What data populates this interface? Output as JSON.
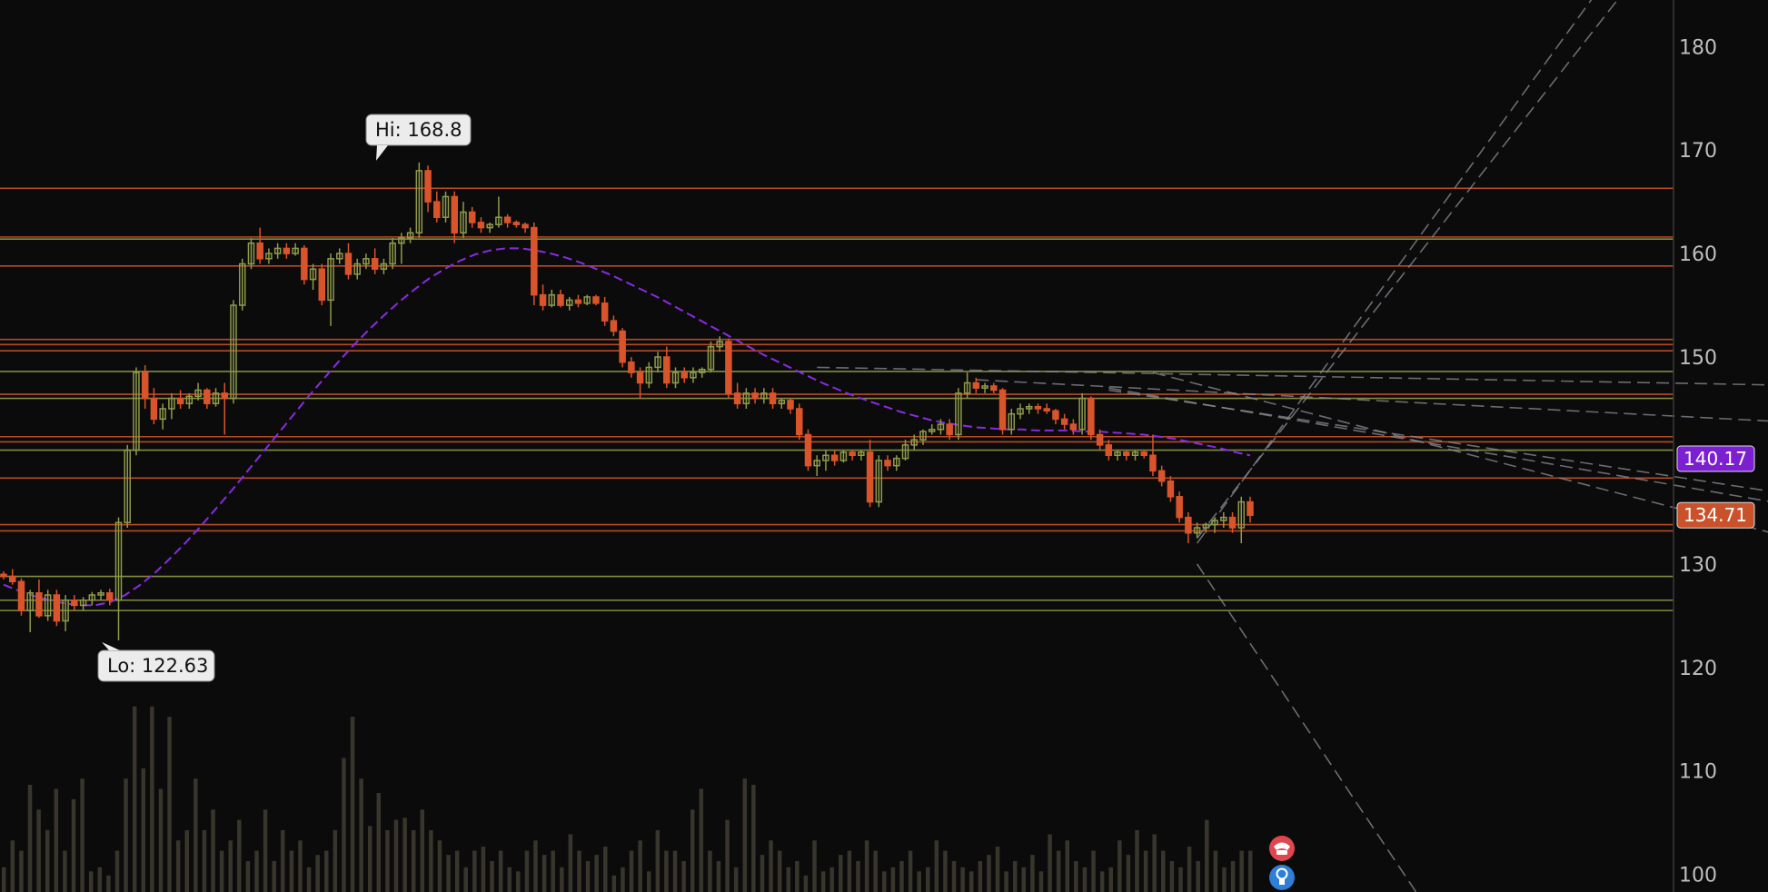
{
  "chart_data": {
    "type": "candlestick",
    "y_axis": {
      "ylim": [
        98.3,
        184.5
      ],
      "ticks": [
        100,
        110,
        120,
        130,
        140,
        150,
        160,
        170,
        180
      ],
      "position": "right"
    },
    "colors": {
      "background": "#0b0b0b",
      "up": "#8f9a4a",
      "down": "#d9542b",
      "ma": "#8a2be2",
      "volume": "#38352c",
      "trend": "#8b8b96",
      "axis_divider": "#444444"
    },
    "annotations": {
      "high": {
        "label": "Hi: 168.8",
        "value": 168.8
      },
      "low": {
        "label": "Lo: 122.63",
        "value": 122.63
      }
    },
    "price_badges": [
      {
        "label": "140.17",
        "value": 140.17,
        "color": "#7b1fd1"
      },
      {
        "label": "134.71",
        "value": 134.71,
        "color": "#c9522a"
      }
    ],
    "horizontal_levels": [
      {
        "value": 166.3,
        "color": "#c9522a"
      },
      {
        "value": 161.6,
        "color": "#c9522a"
      },
      {
        "value": 161.4,
        "color": "#8f9a4a"
      },
      {
        "value": 158.8,
        "color": "#c9522a"
      },
      {
        "value": 151.7,
        "color": "#c9522a"
      },
      {
        "value": 151.2,
        "color": "#c9522a"
      },
      {
        "value": 150.6,
        "color": "#c9522a"
      },
      {
        "value": 148.6,
        "color": "#8f9a4a"
      },
      {
        "value": 146.4,
        "color": "#c9522a"
      },
      {
        "value": 146.0,
        "color": "#8f9a4a"
      },
      {
        "value": 142.3,
        "color": "#c9522a"
      },
      {
        "value": 141.8,
        "color": "#c9522a"
      },
      {
        "value": 141.0,
        "color": "#8f9a4a"
      },
      {
        "value": 138.3,
        "color": "#c9522a"
      },
      {
        "value": 133.8,
        "color": "#c9522a"
      },
      {
        "value": 133.2,
        "color": "#c9522a"
      },
      {
        "value": 128.8,
        "color": "#8f9a4a"
      },
      {
        "value": 126.5,
        "color": "#8f9a4a"
      },
      {
        "value": 125.5,
        "color": "#8f9a4a"
      }
    ],
    "candles": [
      [
        129.0,
        129.3,
        128.5,
        128.8
      ],
      [
        128.8,
        129.5,
        128.0,
        128.3
      ],
      [
        128.3,
        128.6,
        125.0,
        125.5
      ],
      [
        125.5,
        127.5,
        123.4,
        127.2
      ],
      [
        127.2,
        128.5,
        124.8,
        125.0
      ],
      [
        125.0,
        127.5,
        124.5,
        127.0
      ],
      [
        127.0,
        127.5,
        124.0,
        124.5
      ],
      [
        124.5,
        127.0,
        123.5,
        126.5
      ],
      [
        126.5,
        127.0,
        125.5,
        126.0
      ],
      [
        126.0,
        126.8,
        125.5,
        126.5
      ],
      [
        126.5,
        127.3,
        126.0,
        127.0
      ],
      [
        127.0,
        127.5,
        126.5,
        127.2
      ],
      [
        127.2,
        127.6,
        126.0,
        126.5
      ],
      [
        126.5,
        134.5,
        122.63,
        134.0
      ],
      [
        134.0,
        141.5,
        133.5,
        141.0
      ],
      [
        141.0,
        149.0,
        140.5,
        148.5
      ],
      [
        148.5,
        149.2,
        145.0,
        146.0
      ],
      [
        146.0,
        147.0,
        143.5,
        144.0
      ],
      [
        144.0,
        145.5,
        143.0,
        145.0
      ],
      [
        145.0,
        146.5,
        144.0,
        146.0
      ],
      [
        146.0,
        146.8,
        145.0,
        145.5
      ],
      [
        145.5,
        146.5,
        145.0,
        146.2
      ],
      [
        146.2,
        147.5,
        145.8,
        146.8
      ],
      [
        146.8,
        147.0,
        145.0,
        145.5
      ],
      [
        145.5,
        147.0,
        145.2,
        146.5
      ],
      [
        146.5,
        147.5,
        142.5,
        146.0
      ],
      [
        146.0,
        155.5,
        145.5,
        155.0
      ],
      [
        155.0,
        159.5,
        154.5,
        159.0
      ],
      [
        159.0,
        161.5,
        158.5,
        161.0
      ],
      [
        161.0,
        162.5,
        159.0,
        159.5
      ],
      [
        159.5,
        160.5,
        159.0,
        160.0
      ],
      [
        160.0,
        161.0,
        159.5,
        160.5
      ],
      [
        160.5,
        161.0,
        159.5,
        160.0
      ],
      [
        160.0,
        161.0,
        159.8,
        160.5
      ],
      [
        160.5,
        160.8,
        157.0,
        157.5
      ],
      [
        157.5,
        159.0,
        156.5,
        158.5
      ],
      [
        158.5,
        159.0,
        155.0,
        155.5
      ],
      [
        155.5,
        160.0,
        153.0,
        159.5
      ],
      [
        159.5,
        160.5,
        159.0,
        160.0
      ],
      [
        160.0,
        161.0,
        157.5,
        158.0
      ],
      [
        158.0,
        159.5,
        157.5,
        159.0
      ],
      [
        159.0,
        160.0,
        158.5,
        159.5
      ],
      [
        159.5,
        160.5,
        158.0,
        158.5
      ],
      [
        158.5,
        159.5,
        158.0,
        159.0
      ],
      [
        159.0,
        161.5,
        158.5,
        161.0
      ],
      [
        161.0,
        162.0,
        159.0,
        161.5
      ],
      [
        161.5,
        162.5,
        161.0,
        162.0
      ],
      [
        162.0,
        168.8,
        161.5,
        168.0
      ],
      [
        168.0,
        168.5,
        164.0,
        165.0
      ],
      [
        165.0,
        166.0,
        163.0,
        163.5
      ],
      [
        163.5,
        166.0,
        163.0,
        165.5
      ],
      [
        165.5,
        166.0,
        161.0,
        162.0
      ],
      [
        162.0,
        165.0,
        161.5,
        164.0
      ],
      [
        164.0,
        164.5,
        162.5,
        163.0
      ],
      [
        163.0,
        163.5,
        162.0,
        162.5
      ],
      [
        162.5,
        163.0,
        162.0,
        162.8
      ],
      [
        162.8,
        165.5,
        162.5,
        163.5
      ],
      [
        163.5,
        163.8,
        162.5,
        163.0
      ],
      [
        163.0,
        163.2,
        162.5,
        162.8
      ],
      [
        162.8,
        163.0,
        162.0,
        162.5
      ],
      [
        162.5,
        163.0,
        155.0,
        156.0
      ],
      [
        156.0,
        157.0,
        154.5,
        155.0
      ],
      [
        155.0,
        156.5,
        154.8,
        156.0
      ],
      [
        156.0,
        156.5,
        154.8,
        155.0
      ],
      [
        155.0,
        155.8,
        154.5,
        155.5
      ],
      [
        155.5,
        156.0,
        154.8,
        155.2
      ],
      [
        155.2,
        156.0,
        155.0,
        155.8
      ],
      [
        155.8,
        156.0,
        155.0,
        155.2
      ],
      [
        155.2,
        155.8,
        153.0,
        153.5
      ],
      [
        153.5,
        154.0,
        152.0,
        152.5
      ],
      [
        152.5,
        152.8,
        149.0,
        149.5
      ],
      [
        149.5,
        150.0,
        148.0,
        148.5
      ],
      [
        148.5,
        149.0,
        146.0,
        147.5
      ],
      [
        147.5,
        149.5,
        147.0,
        149.0
      ],
      [
        149.0,
        150.5,
        148.5,
        150.0
      ],
      [
        150.0,
        151.0,
        147.0,
        147.5
      ],
      [
        147.5,
        149.0,
        147.0,
        148.5
      ],
      [
        148.5,
        149.0,
        147.5,
        148.0
      ],
      [
        148.0,
        149.0,
        147.5,
        148.5
      ],
      [
        148.5,
        149.0,
        148.0,
        148.8
      ],
      [
        148.8,
        151.5,
        148.5,
        151.0
      ],
      [
        151.0,
        152.0,
        150.5,
        151.5
      ],
      [
        151.5,
        151.8,
        146.0,
        146.5
      ],
      [
        146.5,
        147.5,
        145.0,
        145.5
      ],
      [
        145.5,
        147.0,
        145.0,
        146.5
      ],
      [
        146.5,
        147.0,
        145.5,
        146.0
      ],
      [
        146.0,
        147.0,
        145.5,
        146.5
      ],
      [
        146.5,
        147.0,
        145.0,
        145.5
      ],
      [
        145.5,
        146.0,
        145.0,
        145.8
      ],
      [
        145.8,
        146.0,
        144.5,
        145.0
      ],
      [
        145.0,
        145.5,
        142.0,
        142.5
      ],
      [
        142.5,
        143.0,
        139.0,
        139.5
      ],
      [
        139.5,
        140.5,
        138.5,
        140.0
      ],
      [
        140.0,
        141.0,
        139.0,
        140.5
      ],
      [
        140.5,
        141.0,
        139.5,
        140.0
      ],
      [
        140.0,
        141.0,
        139.8,
        140.8
      ],
      [
        140.8,
        141.0,
        140.0,
        140.5
      ],
      [
        140.5,
        141.0,
        140.0,
        140.8
      ],
      [
        140.8,
        142.0,
        135.5,
        136.0
      ],
      [
        136.0,
        140.5,
        135.5,
        140.0
      ],
      [
        140.0,
        140.5,
        139.0,
        139.5
      ],
      [
        139.5,
        140.5,
        139.0,
        140.2
      ],
      [
        140.2,
        142.0,
        140.0,
        141.5
      ],
      [
        141.5,
        142.5,
        141.0,
        142.0
      ],
      [
        142.0,
        143.0,
        141.5,
        142.8
      ],
      [
        142.8,
        143.5,
        142.5,
        143.0
      ],
      [
        143.0,
        144.0,
        142.5,
        143.5
      ],
      [
        143.5,
        144.0,
        142.0,
        142.5
      ],
      [
        142.5,
        147.0,
        142.0,
        146.5
      ],
      [
        146.5,
        148.5,
        146.0,
        147.5
      ],
      [
        147.5,
        148.0,
        146.5,
        147.0
      ],
      [
        147.0,
        147.5,
        146.5,
        147.2
      ],
      [
        147.2,
        147.5,
        146.5,
        146.8
      ],
      [
        146.8,
        147.0,
        142.5,
        143.0
      ],
      [
        143.0,
        145.0,
        142.5,
        144.5
      ],
      [
        144.5,
        145.5,
        144.0,
        145.0
      ],
      [
        145.0,
        145.5,
        144.5,
        145.2
      ],
      [
        145.2,
        145.5,
        144.5,
        145.0
      ],
      [
        145.0,
        145.5,
        144.5,
        144.8
      ],
      [
        144.8,
        145.0,
        143.5,
        144.0
      ],
      [
        144.0,
        144.5,
        143.0,
        143.5
      ],
      [
        143.5,
        144.0,
        142.5,
        143.0
      ],
      [
        143.0,
        146.5,
        142.5,
        146.0
      ],
      [
        146.0,
        146.2,
        142.0,
        142.5
      ],
      [
        142.5,
        143.0,
        141.0,
        141.5
      ],
      [
        141.5,
        142.0,
        140.0,
        140.5
      ],
      [
        140.5,
        141.0,
        140.0,
        140.8
      ],
      [
        140.8,
        141.0,
        140.0,
        140.5
      ],
      [
        140.5,
        141.0,
        140.0,
        140.8
      ],
      [
        140.8,
        141.0,
        140.2,
        140.5
      ],
      [
        140.5,
        142.5,
        138.5,
        139.0
      ],
      [
        139.0,
        139.5,
        137.5,
        138.0
      ],
      [
        138.0,
        138.5,
        136.0,
        136.5
      ],
      [
        136.5,
        137.0,
        134.0,
        134.5
      ],
      [
        134.5,
        135.0,
        132.0,
        133.0
      ],
      [
        133.0,
        134.0,
        132.5,
        133.5
      ],
      [
        133.5,
        134.0,
        133.0,
        133.8
      ],
      [
        133.8,
        134.5,
        133.0,
        134.2
      ],
      [
        134.2,
        135.0,
        133.5,
        134.5
      ],
      [
        134.5,
        135.0,
        133.0,
        133.5
      ],
      [
        133.5,
        136.5,
        132.0,
        136.0
      ],
      [
        136.0,
        136.5,
        134.0,
        134.71
      ]
    ],
    "moving_average": [
      128.0,
      127.4,
      126.9,
      126.5,
      126.2,
      126.0,
      126.0,
      126.3,
      127.0,
      128.0,
      129.2,
      130.6,
      132.1,
      133.7,
      135.4,
      137.1,
      138.9,
      140.7,
      142.5,
      144.3,
      146.1,
      147.8,
      149.5,
      151.1,
      152.6,
      154.0,
      155.3,
      156.5,
      157.6,
      158.5,
      159.3,
      159.9,
      160.3,
      160.5,
      160.5,
      160.3,
      160.0,
      159.6,
      159.1,
      158.5,
      157.9,
      157.2,
      156.5,
      155.8,
      155.0,
      154.2,
      153.4,
      152.6,
      151.8,
      151.0,
      150.2,
      149.5,
      148.8,
      148.1,
      147.4,
      146.8,
      146.2,
      145.7,
      145.2,
      144.7,
      144.3,
      143.9,
      143.6,
      143.4,
      143.2,
      143.1,
      143.0,
      143.0,
      142.9,
      142.9,
      142.9,
      142.8,
      142.8,
      142.7,
      142.6,
      142.5,
      142.3,
      142.1,
      141.8,
      141.5,
      141.2,
      140.8,
      140.5
    ],
    "volume": [
      0.12,
      0.25,
      0.2,
      0.52,
      0.4,
      0.3,
      0.5,
      0.2,
      0.45,
      0.55,
      0.1,
      0.12,
      0.08,
      0.2,
      0.55,
      0.9,
      0.6,
      0.9,
      0.5,
      0.85,
      0.25,
      0.3,
      0.55,
      0.3,
      0.4,
      0.2,
      0.25,
      0.35,
      0.15,
      0.2,
      0.4,
      0.15,
      0.3,
      0.2,
      0.25,
      0.12,
      0.18,
      0.2,
      0.3,
      0.65,
      0.85,
      0.55,
      0.32,
      0.48,
      0.3,
      0.35,
      0.36,
      0.3,
      0.4,
      0.3,
      0.25,
      0.18,
      0.2,
      0.12,
      0.2,
      0.22,
      0.15,
      0.2,
      0.12,
      0.1,
      0.2,
      0.25,
      0.18,
      0.2,
      0.12,
      0.28,
      0.2,
      0.15,
      0.18,
      0.22,
      0.08,
      0.12,
      0.2,
      0.25,
      0.1,
      0.3,
      0.2,
      0.2,
      0.15,
      0.4,
      0.5,
      0.2,
      0.15,
      0.35,
      0.12,
      0.55,
      0.52,
      0.18,
      0.25,
      0.2,
      0.12,
      0.15,
      0.08,
      0.25,
      0.1,
      0.12,
      0.18,
      0.2,
      0.15,
      0.25,
      0.2,
      0.1,
      0.12,
      0.15,
      0.2,
      0.1,
      0.12,
      0.25,
      0.2,
      0.15,
      0.12,
      0.1,
      0.15,
      0.18,
      0.22,
      0.1,
      0.15,
      0.12,
      0.18,
      0.1,
      0.28,
      0.2,
      0.25,
      0.15,
      0.12,
      0.2,
      0.1,
      0.12,
      0.25,
      0.18,
      0.3,
      0.2,
      0.28,
      0.2,
      0.15,
      0.12,
      0.22,
      0.15,
      0.35,
      0.2,
      0.12,
      0.15,
      0.2,
      0.2
    ]
  },
  "status_icons": [
    {
      "name": "earnings-phone-icon",
      "color": "#e0464f"
    },
    {
      "name": "idea-bulb-icon",
      "color": "#2f7fd6"
    }
  ]
}
